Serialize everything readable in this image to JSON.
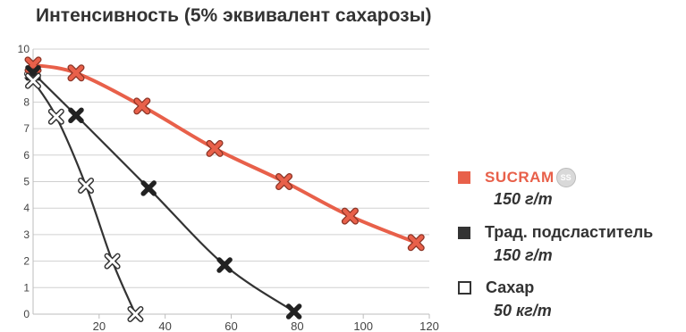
{
  "chart_data": {
    "type": "line",
    "title": "Интенсивность (5% эквивалент сахарозы)",
    "xlim": [
      0,
      120
    ],
    "ylim": [
      0,
      10
    ],
    "x_ticks": [
      20,
      40,
      60,
      80,
      100,
      120
    ],
    "y_ticks": [
      0,
      1,
      2,
      3,
      4,
      5,
      6,
      7,
      8,
      9,
      10
    ],
    "grid": "horizontal",
    "legend_position": "right",
    "series": [
      {
        "name": "SUCRAM",
        "brand_badge": "SS",
        "dose": "150 г/т",
        "color": "#e8604a",
        "marker": "x-filled",
        "points": [
          [
            0,
            9.4
          ],
          [
            13,
            9.1
          ],
          [
            33,
            7.85
          ],
          [
            55,
            6.25
          ],
          [
            76,
            5.0
          ],
          [
            96,
            3.7
          ],
          [
            116,
            2.7
          ]
        ]
      },
      {
        "name": "Трад. подсластитель",
        "dose": "150 г/т",
        "color": "#333333",
        "marker": "x-filled",
        "points": [
          [
            0,
            9.1
          ],
          [
            13,
            7.5
          ],
          [
            35,
            4.75
          ],
          [
            58,
            1.85
          ],
          [
            79,
            0.1
          ]
        ]
      },
      {
        "name": "Сахар",
        "dose": "50 кг/т",
        "color": "#333333",
        "marker": "x-open",
        "points": [
          [
            0,
            8.8
          ],
          [
            7,
            7.45
          ],
          [
            16,
            4.85
          ],
          [
            24,
            2.0
          ],
          [
            31,
            0.0
          ]
        ]
      }
    ]
  }
}
